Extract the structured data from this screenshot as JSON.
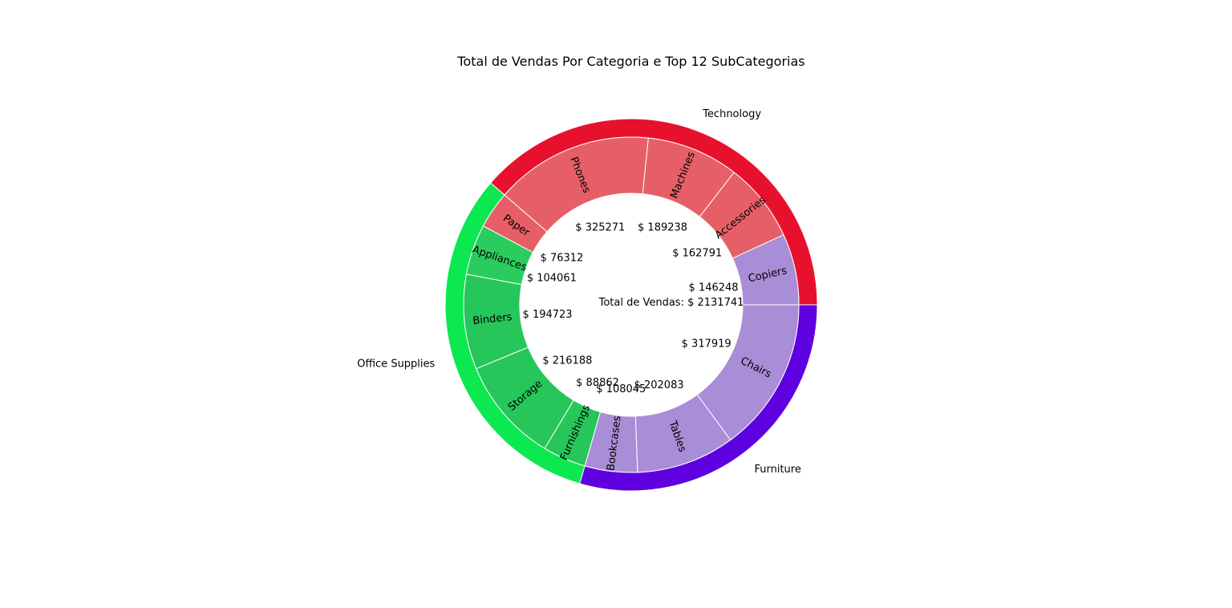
{
  "chart_data": {
    "type": "pie",
    "variant": "nested-donut",
    "title": "Total de Vendas Por Categoria e Top 12 SubCategorias",
    "center_label": "Total de Vendas: $ 2131741",
    "value_prefix": "$ ",
    "categories": [
      {
        "name": "Technology",
        "color": "#e8112d"
      },
      {
        "name": "Office Supplies",
        "color": "#0ce84f"
      },
      {
        "name": "Furniture",
        "color": "#5e00e0"
      }
    ],
    "subcategories": [
      {
        "name": "Copiers",
        "value": 146248,
        "category": "Technology",
        "color": "#a98dd6"
      },
      {
        "name": "Accessories",
        "value": 162791,
        "category": "Technology",
        "color": "#e65f67"
      },
      {
        "name": "Machines",
        "value": 189238,
        "category": "Technology",
        "color": "#e65f67"
      },
      {
        "name": "Phones",
        "value": 325271,
        "category": "Technology",
        "color": "#e65f67"
      },
      {
        "name": "Paper",
        "value": 76312,
        "category": "Office Supplies",
        "color": "#e65f67"
      },
      {
        "name": "Appliances",
        "value": 104061,
        "category": "Office Supplies",
        "color": "#2bcc5e"
      },
      {
        "name": "Binders",
        "value": 194723,
        "category": "Office Supplies",
        "color": "#26c65a"
      },
      {
        "name": "Storage",
        "value": 216188,
        "category": "Office Supplies",
        "color": "#26c65a"
      },
      {
        "name": "Furnishings",
        "value": 88862,
        "category": "Office Supplies",
        "color": "#26c65a"
      },
      {
        "name": "Bookcases",
        "value": 108045,
        "category": "Furniture",
        "color": "#a98dd6"
      },
      {
        "name": "Tables",
        "value": 202083,
        "category": "Furniture",
        "color": "#a98dd6"
      },
      {
        "name": "Chairs",
        "value": 317919,
        "category": "Furniture",
        "color": "#a98dd6"
      }
    ]
  }
}
